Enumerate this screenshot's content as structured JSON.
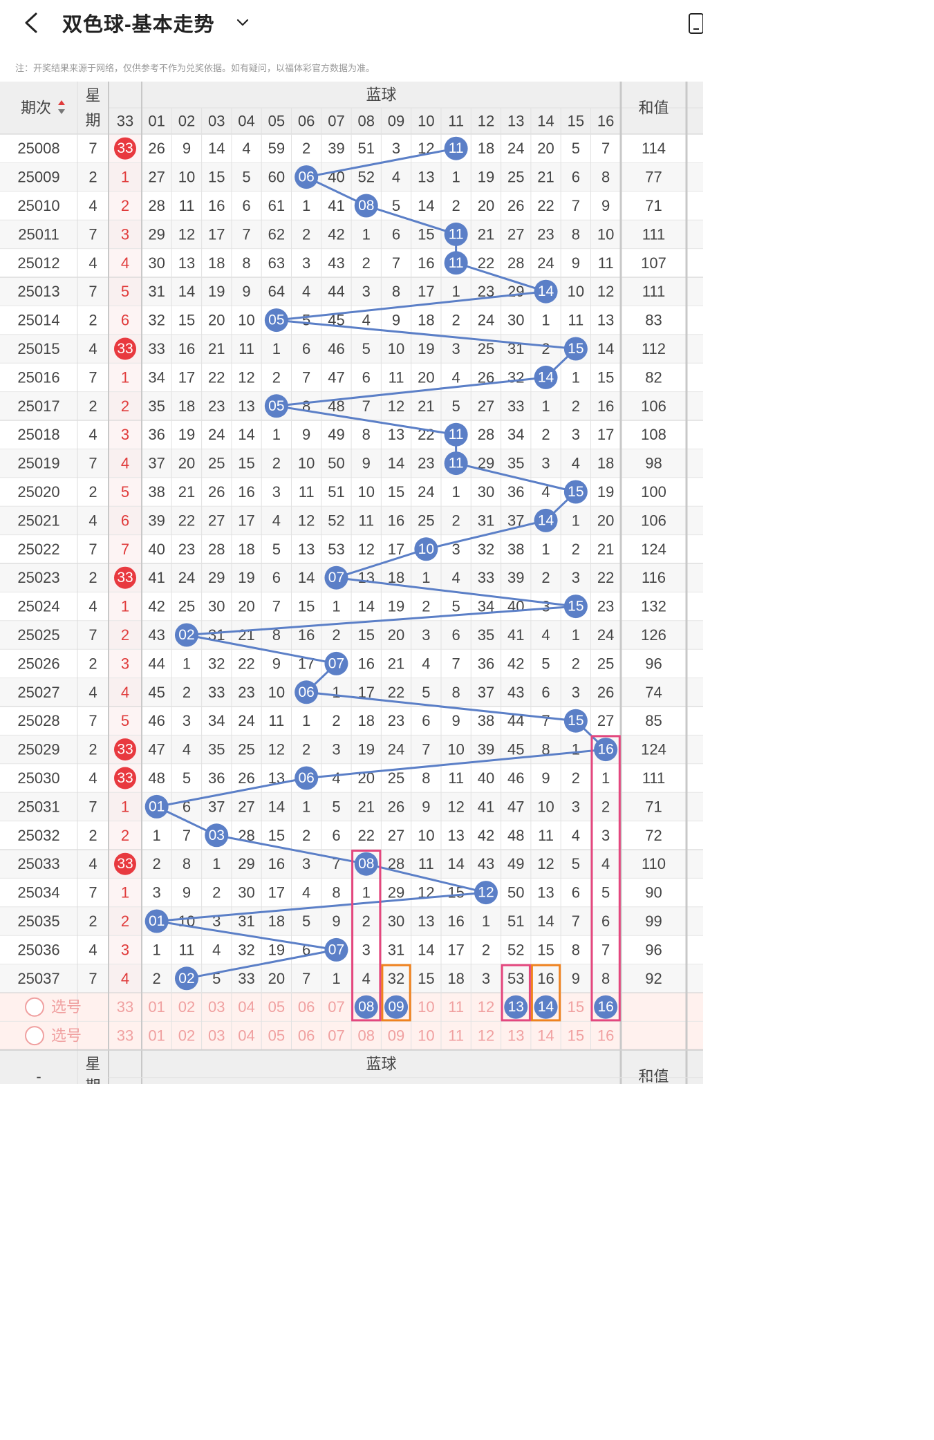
{
  "header": {
    "title": "双色球-基本走势"
  },
  "notice": "注：开奖结果来源于网络，仅供参考不作为兑奖依据。如有疑问，以福体彩官方数据为准。",
  "table": {
    "col_period": "期次",
    "col_weekday_line1": "星",
    "col_weekday_line2": "期",
    "group_blue": "蓝球",
    "col_sum": "和值",
    "col_33": "33",
    "blue_headers": [
      "01",
      "02",
      "03",
      "04",
      "05",
      "06",
      "07",
      "08",
      "09",
      "10",
      "11",
      "12",
      "13",
      "14",
      "15",
      "16"
    ],
    "rows": [
      {
        "period": "25008",
        "weekday": "7",
        "red": "33",
        "red_hit": true,
        "cells": [
          "26",
          "9",
          "14",
          "4",
          "59",
          "2",
          "39",
          "51",
          "3",
          "12",
          "11",
          "18",
          "24",
          "20",
          "5",
          "7"
        ],
        "blue": "11",
        "sum": "114"
      },
      {
        "period": "25009",
        "weekday": "2",
        "red": "1",
        "red_hit": false,
        "cells": [
          "27",
          "10",
          "15",
          "5",
          "60",
          "06",
          "40",
          "52",
          "4",
          "13",
          "1",
          "19",
          "25",
          "21",
          "6",
          "8"
        ],
        "blue": "06",
        "sum": "77"
      },
      {
        "period": "25010",
        "weekday": "4",
        "red": "2",
        "red_hit": false,
        "cells": [
          "28",
          "11",
          "16",
          "6",
          "61",
          "1",
          "41",
          "08",
          "5",
          "14",
          "2",
          "20",
          "26",
          "22",
          "7",
          "9"
        ],
        "blue": "08",
        "sum": "71"
      },
      {
        "period": "25011",
        "weekday": "7",
        "red": "3",
        "red_hit": false,
        "cells": [
          "29",
          "12",
          "17",
          "7",
          "62",
          "2",
          "42",
          "1",
          "6",
          "15",
          "11",
          "21",
          "27",
          "23",
          "8",
          "10"
        ],
        "blue": "11",
        "sum": "111"
      },
      {
        "period": "25012",
        "weekday": "4",
        "red": "4",
        "red_hit": false,
        "cells": [
          "30",
          "13",
          "18",
          "8",
          "63",
          "3",
          "43",
          "2",
          "7",
          "16",
          "11",
          "22",
          "28",
          "24",
          "9",
          "11"
        ],
        "blue": "11",
        "sum": "107"
      },
      {
        "period": "25013",
        "weekday": "7",
        "red": "5",
        "red_hit": false,
        "cells": [
          "31",
          "14",
          "19",
          "9",
          "64",
          "4",
          "44",
          "3",
          "8",
          "17",
          "1",
          "23",
          "29",
          "14",
          "10",
          "12"
        ],
        "blue": "14",
        "sum": "111"
      },
      {
        "period": "25014",
        "weekday": "2",
        "red": "6",
        "red_hit": false,
        "cells": [
          "32",
          "15",
          "20",
          "10",
          "05",
          "5",
          "45",
          "4",
          "9",
          "18",
          "2",
          "24",
          "30",
          "1",
          "11",
          "13"
        ],
        "blue": "05",
        "sum": "83"
      },
      {
        "period": "25015",
        "weekday": "4",
        "red": "33",
        "red_hit": true,
        "cells": [
          "33",
          "16",
          "21",
          "11",
          "1",
          "6",
          "46",
          "5",
          "10",
          "19",
          "3",
          "25",
          "31",
          "2",
          "15",
          "14"
        ],
        "blue": "15",
        "sum": "112"
      },
      {
        "period": "25016",
        "weekday": "7",
        "red": "1",
        "red_hit": false,
        "cells": [
          "34",
          "17",
          "22",
          "12",
          "2",
          "7",
          "47",
          "6",
          "11",
          "20",
          "4",
          "26",
          "32",
          "14",
          "1",
          "15"
        ],
        "blue": "14",
        "sum": "82"
      },
      {
        "period": "25017",
        "weekday": "2",
        "red": "2",
        "red_hit": false,
        "cells": [
          "35",
          "18",
          "23",
          "13",
          "05",
          "8",
          "48",
          "7",
          "12",
          "21",
          "5",
          "27",
          "33",
          "1",
          "2",
          "16"
        ],
        "blue": "05",
        "sum": "106"
      },
      {
        "period": "25018",
        "weekday": "4",
        "red": "3",
        "red_hit": false,
        "cells": [
          "36",
          "19",
          "24",
          "14",
          "1",
          "9",
          "49",
          "8",
          "13",
          "22",
          "11",
          "28",
          "34",
          "2",
          "3",
          "17"
        ],
        "blue": "11",
        "sum": "108"
      },
      {
        "period": "25019",
        "weekday": "7",
        "red": "4",
        "red_hit": false,
        "cells": [
          "37",
          "20",
          "25",
          "15",
          "2",
          "10",
          "50",
          "9",
          "14",
          "23",
          "11",
          "29",
          "35",
          "3",
          "4",
          "18"
        ],
        "blue": "11",
        "sum": "98"
      },
      {
        "period": "25020",
        "weekday": "2",
        "red": "5",
        "red_hit": false,
        "cells": [
          "38",
          "21",
          "26",
          "16",
          "3",
          "11",
          "51",
          "10",
          "15",
          "24",
          "1",
          "30",
          "36",
          "4",
          "15",
          "19"
        ],
        "blue": "15",
        "sum": "100"
      },
      {
        "period": "25021",
        "weekday": "4",
        "red": "6",
        "red_hit": false,
        "cells": [
          "39",
          "22",
          "27",
          "17",
          "4",
          "12",
          "52",
          "11",
          "16",
          "25",
          "2",
          "31",
          "37",
          "14",
          "1",
          "20"
        ],
        "blue": "14",
        "sum": "106"
      },
      {
        "period": "25022",
        "weekday": "7",
        "red": "7",
        "red_hit": false,
        "cells": [
          "40",
          "23",
          "28",
          "18",
          "5",
          "13",
          "53",
          "12",
          "17",
          "10",
          "3",
          "32",
          "38",
          "1",
          "2",
          "21"
        ],
        "blue": "10",
        "sum": "124"
      },
      {
        "period": "25023",
        "weekday": "2",
        "red": "33",
        "red_hit": true,
        "cells": [
          "41",
          "24",
          "29",
          "19",
          "6",
          "14",
          "07",
          "13",
          "18",
          "1",
          "4",
          "33",
          "39",
          "2",
          "3",
          "22"
        ],
        "blue": "07",
        "sum": "116"
      },
      {
        "period": "25024",
        "weekday": "4",
        "red": "1",
        "red_hit": false,
        "cells": [
          "42",
          "25",
          "30",
          "20",
          "7",
          "15",
          "1",
          "14",
          "19",
          "2",
          "5",
          "34",
          "40",
          "3",
          "15",
          "23"
        ],
        "blue": "15",
        "sum": "132"
      },
      {
        "period": "25025",
        "weekday": "7",
        "red": "2",
        "red_hit": false,
        "cells": [
          "43",
          "02",
          "31",
          "21",
          "8",
          "16",
          "2",
          "15",
          "20",
          "3",
          "6",
          "35",
          "41",
          "4",
          "1",
          "24"
        ],
        "blue": "02",
        "sum": "126"
      },
      {
        "period": "25026",
        "weekday": "2",
        "red": "3",
        "red_hit": false,
        "cells": [
          "44",
          "1",
          "32",
          "22",
          "9",
          "17",
          "07",
          "16",
          "21",
          "4",
          "7",
          "36",
          "42",
          "5",
          "2",
          "25"
        ],
        "blue": "07",
        "sum": "96"
      },
      {
        "period": "25027",
        "weekday": "4",
        "red": "4",
        "red_hit": false,
        "cells": [
          "45",
          "2",
          "33",
          "23",
          "10",
          "06",
          "1",
          "17",
          "22",
          "5",
          "8",
          "37",
          "43",
          "6",
          "3",
          "26"
        ],
        "blue": "06",
        "sum": "74"
      },
      {
        "period": "25028",
        "weekday": "7",
        "red": "5",
        "red_hit": false,
        "cells": [
          "46",
          "3",
          "34",
          "24",
          "11",
          "1",
          "2",
          "18",
          "23",
          "6",
          "9",
          "38",
          "44",
          "7",
          "15",
          "27"
        ],
        "blue": "15",
        "sum": "85"
      },
      {
        "period": "25029",
        "weekday": "2",
        "red": "33",
        "red_hit": true,
        "cells": [
          "47",
          "4",
          "35",
          "25",
          "12",
          "2",
          "3",
          "19",
          "24",
          "7",
          "10",
          "39",
          "45",
          "8",
          "1",
          "16"
        ],
        "blue": "16",
        "sum": "124"
      },
      {
        "period": "25030",
        "weekday": "4",
        "red": "33",
        "red_hit": true,
        "cells": [
          "48",
          "5",
          "36",
          "26",
          "13",
          "06",
          "4",
          "20",
          "25",
          "8",
          "11",
          "40",
          "46",
          "9",
          "2",
          "1"
        ],
        "blue": "06",
        "sum": "111"
      },
      {
        "period": "25031",
        "weekday": "7",
        "red": "1",
        "red_hit": false,
        "cells": [
          "01",
          "6",
          "37",
          "27",
          "14",
          "1",
          "5",
          "21",
          "26",
          "9",
          "12",
          "41",
          "47",
          "10",
          "3",
          "2"
        ],
        "blue": "01",
        "sum": "71"
      },
      {
        "period": "25032",
        "weekday": "2",
        "red": "2",
        "red_hit": false,
        "cells": [
          "1",
          "7",
          "03",
          "28",
          "15",
          "2",
          "6",
          "22",
          "27",
          "10",
          "13",
          "42",
          "48",
          "11",
          "4",
          "3"
        ],
        "blue": "03",
        "sum": "72"
      },
      {
        "period": "25033",
        "weekday": "4",
        "red": "33",
        "red_hit": true,
        "cells": [
          "2",
          "8",
          "1",
          "29",
          "16",
          "3",
          "7",
          "08",
          "28",
          "11",
          "14",
          "43",
          "49",
          "12",
          "5",
          "4"
        ],
        "blue": "08",
        "sum": "110"
      },
      {
        "period": "25034",
        "weekday": "7",
        "red": "1",
        "red_hit": false,
        "cells": [
          "3",
          "9",
          "2",
          "30",
          "17",
          "4",
          "8",
          "1",
          "29",
          "12",
          "15",
          "12",
          "50",
          "13",
          "6",
          "5"
        ],
        "blue": "12",
        "sum": "90"
      },
      {
        "period": "25035",
        "weekday": "2",
        "red": "2",
        "red_hit": false,
        "cells": [
          "01",
          "10",
          "3",
          "31",
          "18",
          "5",
          "9",
          "2",
          "30",
          "13",
          "16",
          "1",
          "51",
          "14",
          "7",
          "6"
        ],
        "blue": "01",
        "sum": "99"
      },
      {
        "period": "25036",
        "weekday": "4",
        "red": "3",
        "red_hit": false,
        "cells": [
          "1",
          "11",
          "4",
          "32",
          "19",
          "6",
          "07",
          "3",
          "31",
          "14",
          "17",
          "2",
          "52",
          "15",
          "8",
          "7"
        ],
        "blue": "07",
        "sum": "96"
      },
      {
        "period": "25037",
        "weekday": "7",
        "red": "4",
        "red_hit": false,
        "cells": [
          "2",
          "02",
          "5",
          "33",
          "20",
          "7",
          "1",
          "4",
          "32",
          "15",
          "18",
          "3",
          "53",
          "16",
          "9",
          "8"
        ],
        "blue": "02",
        "sum": "92"
      }
    ],
    "select_label": "选号",
    "select_rows": [
      {
        "label": "选号",
        "highlight": [
          "08",
          "09",
          "13",
          "14",
          "16"
        ]
      },
      {
        "label": "选号",
        "highlight": []
      }
    ]
  },
  "annotation_boxes": [
    {
      "col": "08",
      "from_row": 25,
      "to_row": 30,
      "color": "#e4477e"
    },
    {
      "col": "16",
      "from_row": 21,
      "to_row": 30,
      "color": "#e4477e"
    },
    {
      "col": "13",
      "from_row": 29,
      "to_row": 30,
      "color": "#e4477e"
    },
    {
      "col": "09",
      "from_row": 29,
      "to_row": 30,
      "color": "#f0821e"
    },
    {
      "col": "14",
      "from_row": 29,
      "to_row": 30,
      "color": "#f0821e"
    }
  ],
  "colors": {
    "blue_ball": "#5b7fc7",
    "red_ball": "#e8393f",
    "red_text": "#e03b3b",
    "pink_text": "#f0a0a0",
    "select_bg": "#fff1ee"
  },
  "icons": [
    "back-arrow-icon",
    "chevron-down-icon",
    "phone-icon",
    "sort-arrows-icon",
    "radio-circle-icon"
  ]
}
